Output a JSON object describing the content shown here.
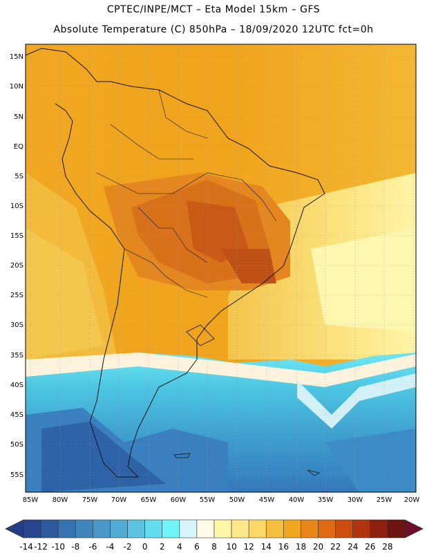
{
  "header": {
    "line1": "CPTEC/INPE/MCT –  Eta Model 15km – GFS",
    "line2": "Absolute Temperature (C) 850hPa – 18/09/2020 12UTC fct=0h"
  },
  "map": {
    "lat_labels": [
      "15N",
      "10N",
      "5N",
      "EQ",
      "5S",
      "10S",
      "15S",
      "20S",
      "25S",
      "30S",
      "35S",
      "40S",
      "45S",
      "50S",
      "55S"
    ],
    "lon_labels": [
      "85W",
      "80W",
      "75W",
      "70W",
      "65W",
      "60W",
      "55W",
      "50W",
      "45W",
      "40W",
      "35W",
      "30W",
      "25W",
      "20W"
    ],
    "grid": true
  },
  "colorbar": {
    "labels": [
      "-14",
      "-12",
      "-10",
      "-8",
      "-6",
      "-4",
      "-2",
      "0",
      "2",
      "4",
      "6",
      "8",
      "10",
      "12",
      "14",
      "16",
      "18",
      "20",
      "22",
      "24",
      "26",
      "28"
    ],
    "colors": [
      "#27458f",
      "#2d5a9f",
      "#3673b0",
      "#3f86bd",
      "#4a98c8",
      "#52abd4",
      "#5bc3e0",
      "#63dcec",
      "#6ff5f8",
      "#d6f4fb",
      "#fffbe6",
      "#fff7a8",
      "#ffe88a",
      "#fbd765",
      "#f4bf3c",
      "#f0a61e",
      "#e8861a",
      "#e06a12",
      "#cc4d10",
      "#b03410",
      "#8f2010",
      "#6e1410"
    ]
  }
}
